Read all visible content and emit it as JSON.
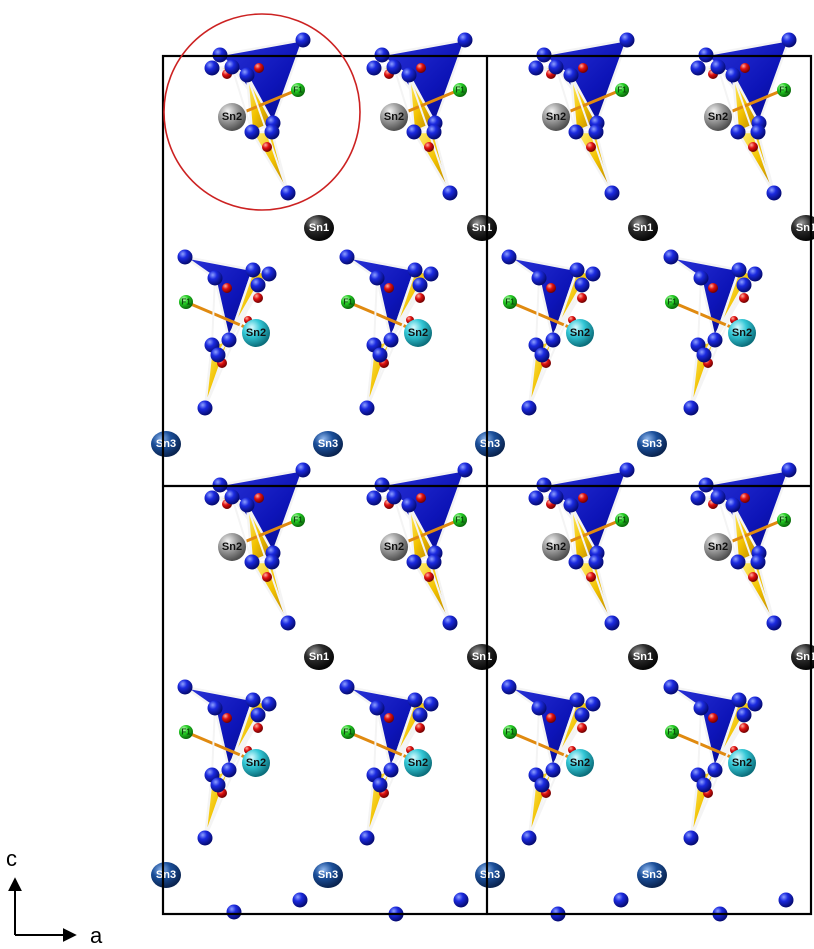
{
  "labels": {
    "sn1": "Sn1",
    "sn2": "Sn2",
    "sn3": "Sn3",
    "f1": "F1"
  },
  "axes": {
    "vertical": "c",
    "horizontal": "a"
  },
  "colors": {
    "background": "#ffffff",
    "cell_line": "#000000",
    "highlight_circle": "#cc2222",
    "blue_atom": "#0a16c8",
    "blue_polyhedron": "#0d14b8",
    "yellow_polyhedron": "#f2c200",
    "red_atom": "#e01010",
    "green_atom": "#22cc22",
    "bond": "#e08a10",
    "sn1_atom": "#2a2a2a",
    "sn2_gray_atom": "#9a9a9a",
    "sn2_cyan_atom": "#33c7d6",
    "sn3_atom": "#1b4f9a"
  }
}
